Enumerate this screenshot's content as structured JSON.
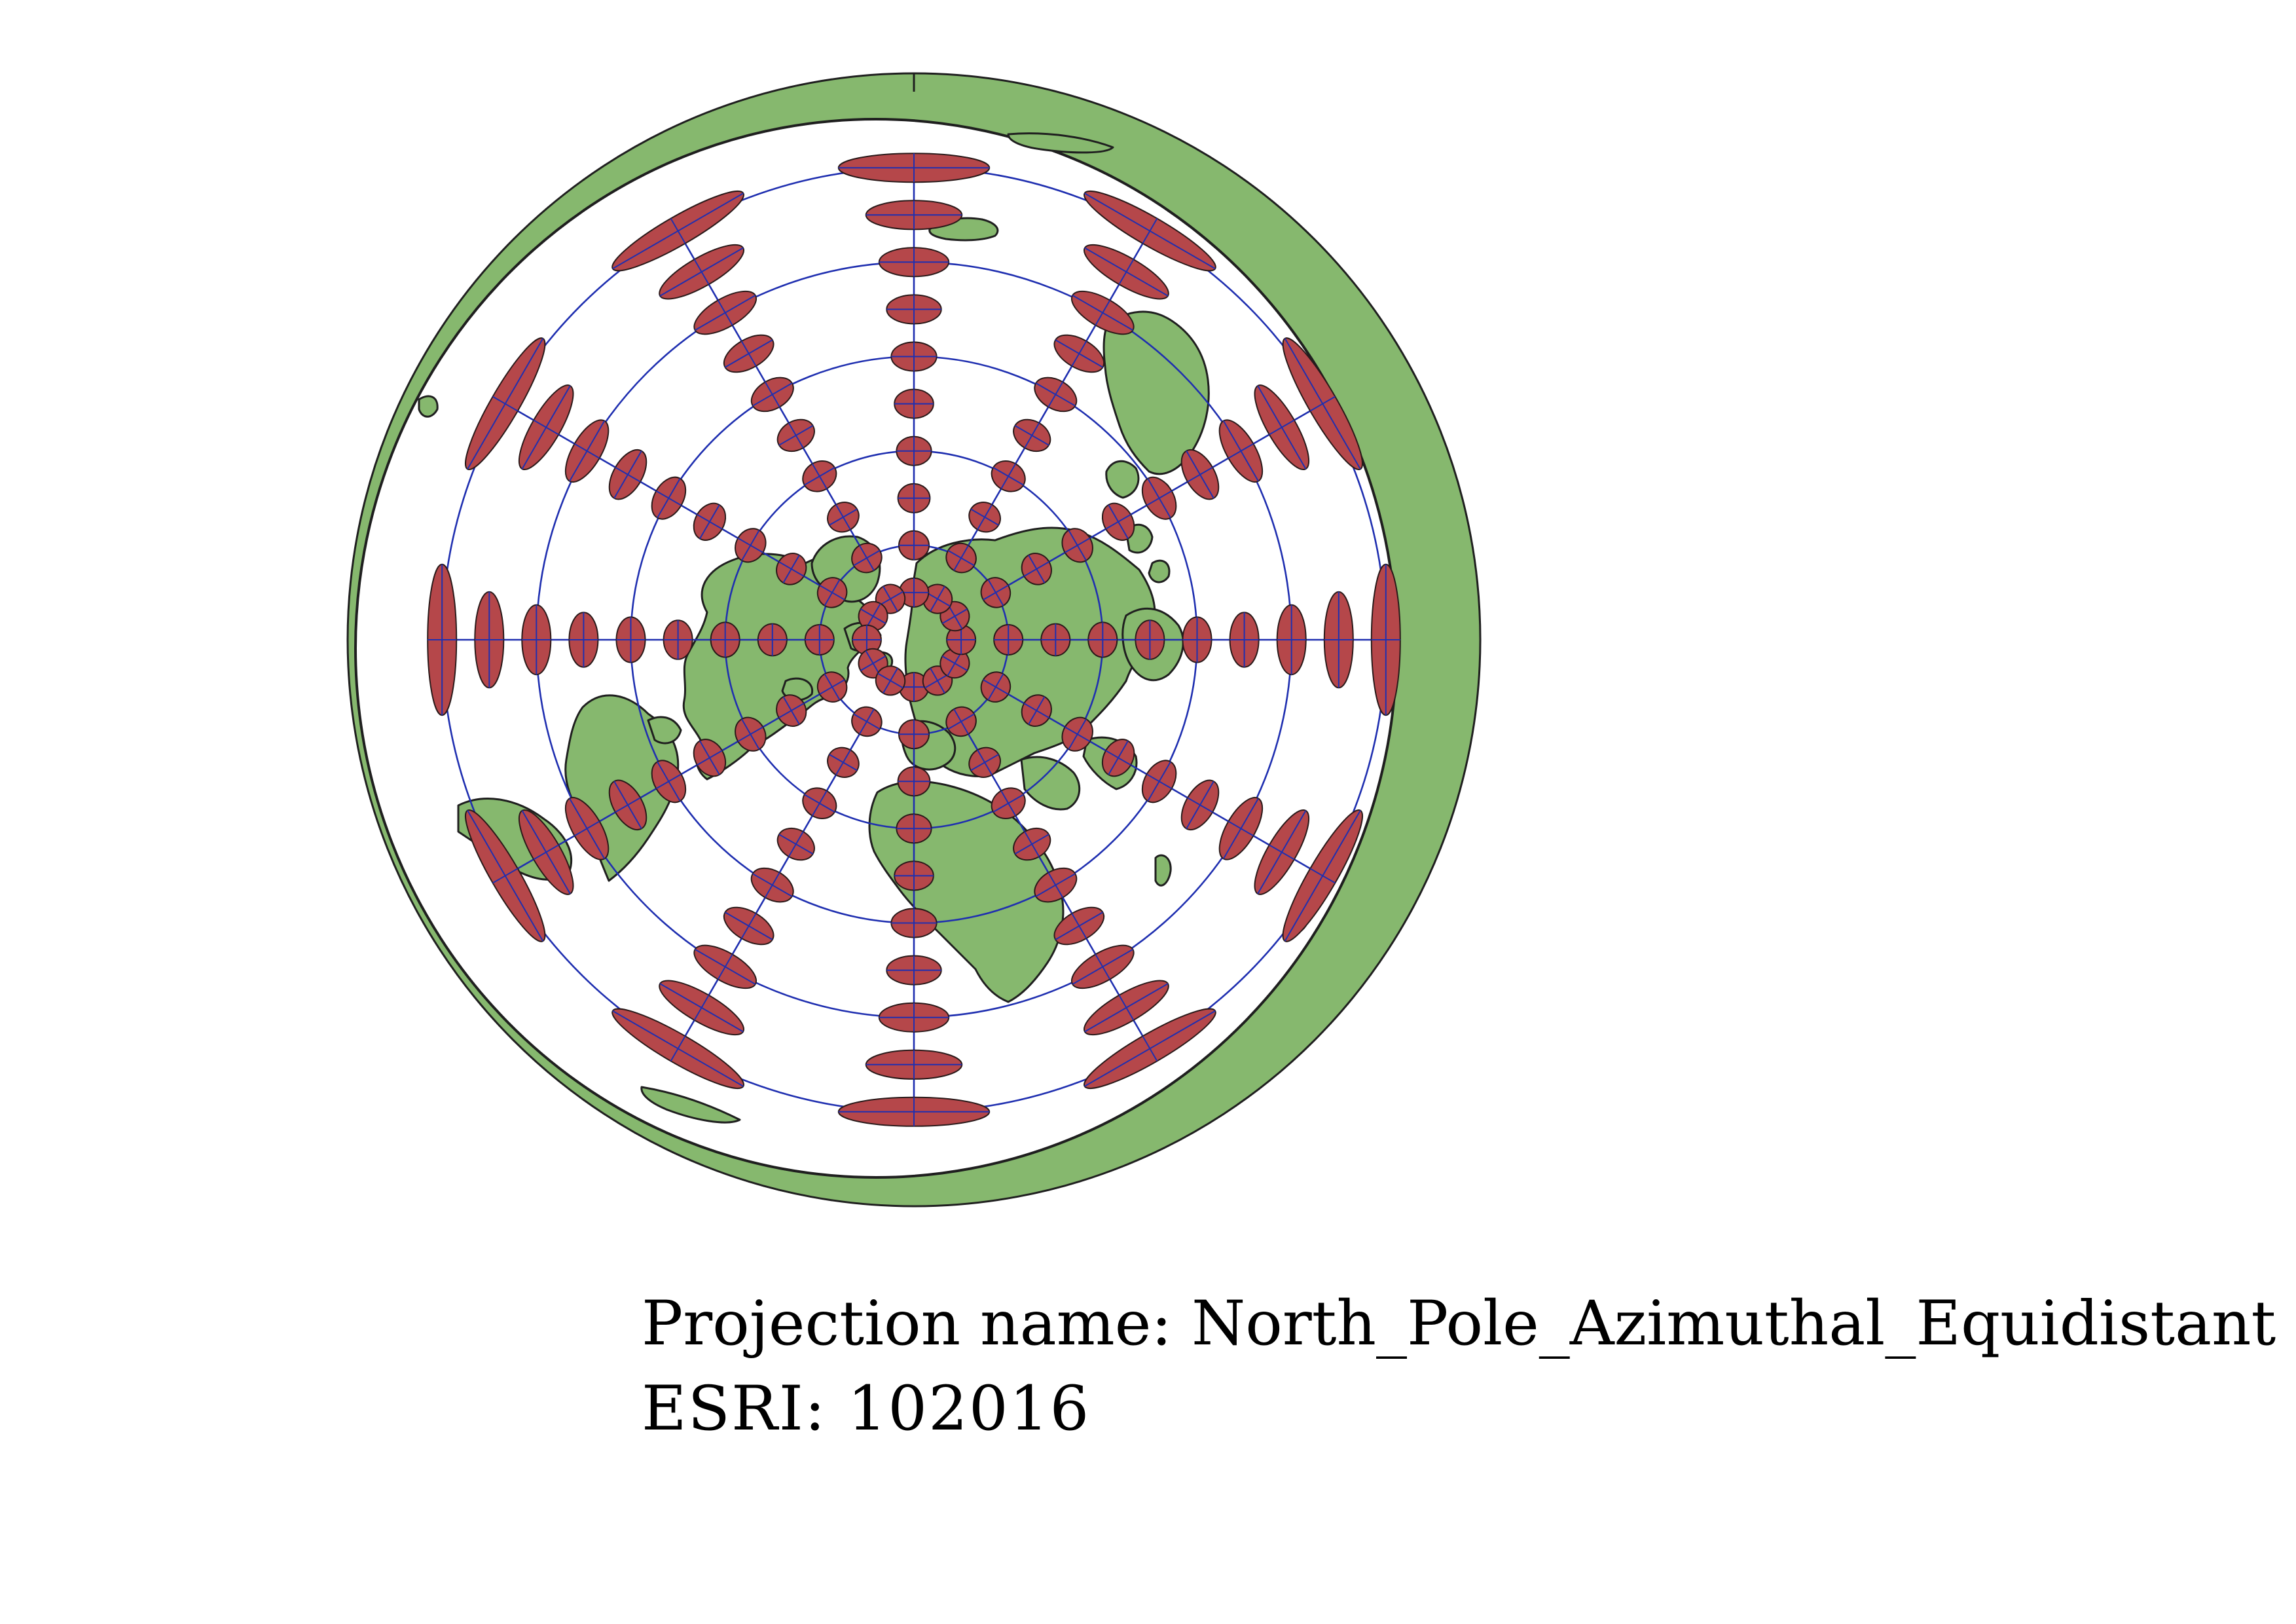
{
  "map": {
    "projection_label": "Projection name:",
    "projection_name": "North_Pole_Azimuthal_Equidistant",
    "esri_label": "ESRI:",
    "esri_code": "102016",
    "colors": {
      "land": "#86b86e",
      "coastline": "#1f1f1f",
      "ocean": "#ffffff",
      "graticule": "#1f2fb0",
      "indicatrix": "#b5474a",
      "indicatrix_outline": "#2a1a1a"
    },
    "graticule": {
      "meridian_step_deg": 30,
      "parallel_latitudes_deg": [
        60,
        30,
        0,
        -30,
        -60
      ]
    },
    "indicatrix_grid": {
      "latitudes_deg": [
        75,
        60,
        45,
        30,
        15,
        0,
        -15,
        -30,
        -45,
        -60
      ],
      "longitudes_deg": [
        0,
        30,
        60,
        90,
        120,
        150,
        180,
        210,
        240,
        270,
        300,
        330
      ]
    }
  }
}
